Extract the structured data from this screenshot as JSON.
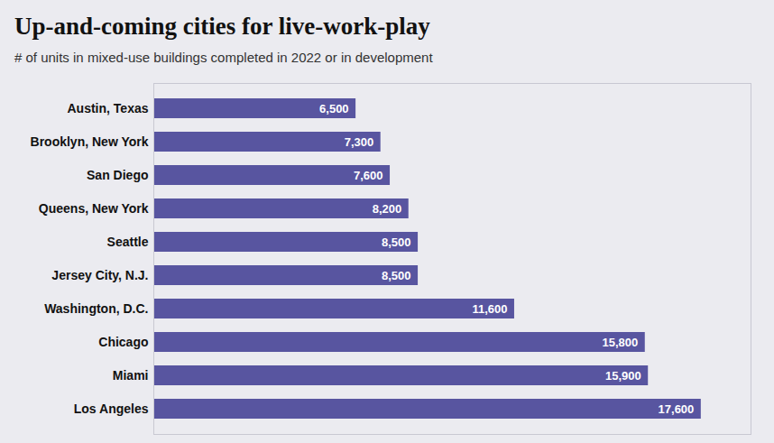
{
  "chart_data": {
    "type": "bar",
    "orientation": "horizontal",
    "title": "Up-and-coming cities for live-work-play",
    "subtitle": "# of units in mixed-use buildings completed in 2022 or in development",
    "categories": [
      "Austin, Texas",
      "Brooklyn, New York",
      "San Diego",
      "Queens, New York",
      "Seattle",
      "Jersey City, N.J.",
      "Washington, D.C.",
      "Chicago",
      "Miami",
      "Los Angeles"
    ],
    "values": [
      6500,
      7300,
      7600,
      8200,
      8500,
      8500,
      11600,
      15800,
      15900,
      17600
    ],
    "value_labels": [
      "6,500",
      "7,300",
      "7,600",
      "8,200",
      "8,500",
      "8,500",
      "11,600",
      "15,800",
      "15,900",
      "17,600"
    ],
    "color": "#5855a0",
    "xlim": [
      0,
      19200
    ],
    "data_labels": true,
    "tick_labels": "y"
  }
}
